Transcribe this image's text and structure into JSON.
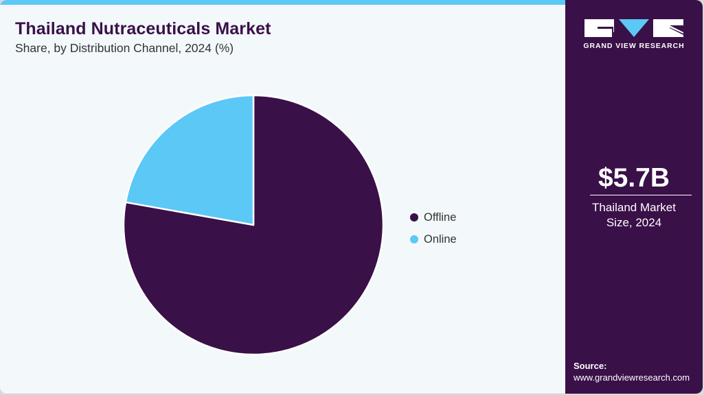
{
  "header": {
    "title": "Thailand Nutraceuticals Market",
    "subtitle": "Share, by Distribution Channel, 2024 (%)"
  },
  "brand": {
    "logo_text": "GRAND VIEW RESEARCH",
    "colors": {
      "panel": "#3a1048",
      "accent": "#5bc8f5",
      "background": "#f3f8fb"
    }
  },
  "sidebar": {
    "market_value": "$5.7B",
    "market_label_line1": "Thailand Market",
    "market_label_line2": "Size, 2024",
    "source_label": "Source:",
    "source_url": "www.grandviewresearch.com"
  },
  "legend": {
    "items": [
      {
        "label": "Offline",
        "color": "#3a1048"
      },
      {
        "label": "Online",
        "color": "#5bc8f5"
      }
    ]
  },
  "chart_data": {
    "type": "pie",
    "title": "Thailand Nutraceuticals Market",
    "subtitle": "Share, by Distribution Channel, 2024 (%)",
    "categories": [
      "Offline",
      "Online"
    ],
    "values": [
      77.8,
      22.2
    ],
    "colors": [
      "#3a1048",
      "#5bc8f5"
    ],
    "start_angle_deg": 0,
    "direction": "clockwise from top (Offline), Online occupies top-left",
    "legend_position": "right",
    "data_labels": false
  }
}
